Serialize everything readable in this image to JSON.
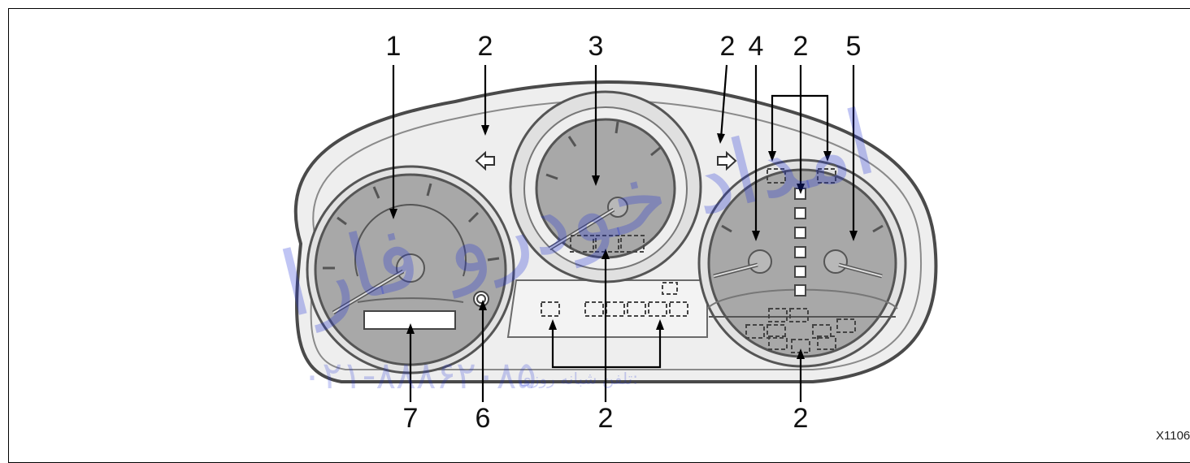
{
  "callouts": {
    "c1": "1",
    "c2_left": "2",
    "c3": "3",
    "c2_right": "2",
    "c4": "4",
    "c2_top": "2",
    "c5": "5",
    "c7": "7",
    "c6": "6",
    "c2_bottom_center": "2",
    "c2_bottom_right": "2"
  },
  "figure_id": "X1106",
  "watermark": {
    "brand": "امداد خودرو فارا",
    "phone_label": "تلفن شبانه روزی:",
    "phone_number": "۰۲۱-۸۸۸۶۲۰۸۵"
  },
  "colors": {
    "gauge_face": "#a6a6a6",
    "bezel": "#d9d9d9",
    "outline": "#5a5a5a",
    "housing": "#ededed"
  }
}
